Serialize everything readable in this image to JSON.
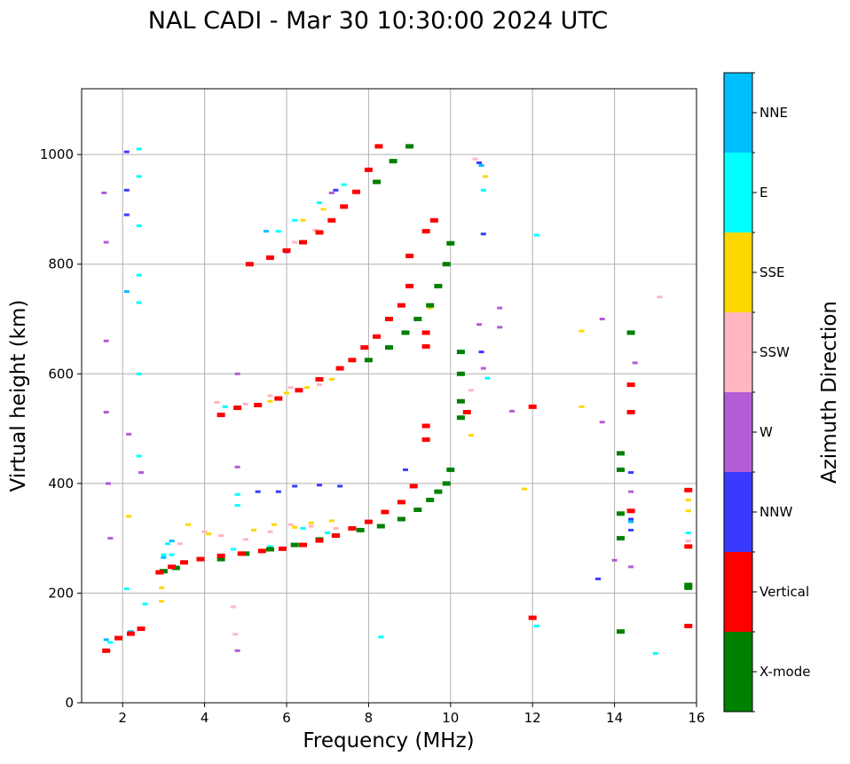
{
  "chart_data": {
    "type": "scatter",
    "title": "NAL CADI - Mar 30 10:30:00 2024 UTC",
    "xlabel": "Frequency (MHz)",
    "ylabel": "Virtual height (km)",
    "xlim": [
      1,
      16
    ],
    "ylim": [
      0,
      1120
    ],
    "xticks": [
      2,
      4,
      6,
      8,
      10,
      12,
      14,
      16
    ],
    "yticks": [
      0,
      200,
      400,
      600,
      800,
      1000
    ],
    "grid": true,
    "colorbar": {
      "label": "Azimuth Direction",
      "placement": "right",
      "categories": [
        "X-mode",
        "Vertical",
        "NNW",
        "W",
        "SSW",
        "SSE",
        "E",
        "NNE"
      ],
      "colors": [
        "#008000",
        "#ff0000",
        "#3a3aff",
        "#b35cd6",
        "#ffb6c1",
        "#ffd700",
        "#00ffff",
        "#00bfff"
      ]
    },
    "series": [
      {
        "name": "Vertical",
        "points": [
          [
            1.6,
            95
          ],
          [
            1.9,
            118
          ],
          [
            2.2,
            126
          ],
          [
            2.45,
            135
          ],
          [
            2.9,
            238
          ],
          [
            3.2,
            248
          ],
          [
            3.5,
            256
          ],
          [
            3.9,
            262
          ],
          [
            4.4,
            268
          ],
          [
            4.9,
            272
          ],
          [
            5.4,
            277
          ],
          [
            5.9,
            281
          ],
          [
            6.4,
            288
          ],
          [
            6.8,
            296
          ],
          [
            7.2,
            305
          ],
          [
            7.6,
            318
          ],
          [
            8.0,
            330
          ],
          [
            8.4,
            348
          ],
          [
            8.8,
            366
          ],
          [
            9.1,
            395
          ],
          [
            9.4,
            480
          ],
          [
            9.4,
            505
          ],
          [
            4.4,
            525
          ],
          [
            4.8,
            538
          ],
          [
            5.3,
            543
          ],
          [
            5.8,
            555
          ],
          [
            6.3,
            570
          ],
          [
            6.8,
            590
          ],
          [
            7.3,
            610
          ],
          [
            7.6,
            625
          ],
          [
            7.9,
            648
          ],
          [
            8.2,
            668
          ],
          [
            8.5,
            700
          ],
          [
            8.8,
            725
          ],
          [
            9.0,
            760
          ],
          [
            9.0,
            815
          ],
          [
            9.4,
            860
          ],
          [
            9.6,
            880
          ],
          [
            5.1,
            800
          ],
          [
            5.6,
            812
          ],
          [
            6.0,
            825
          ],
          [
            6.4,
            840
          ],
          [
            6.8,
            858
          ],
          [
            7.1,
            880
          ],
          [
            7.4,
            905
          ],
          [
            7.7,
            932
          ],
          [
            8.0,
            972
          ],
          [
            8.25,
            1015
          ],
          [
            9.4,
            650
          ],
          [
            9.4,
            675
          ],
          [
            10.4,
            530
          ],
          [
            12.0,
            540
          ],
          [
            12.0,
            155
          ],
          [
            15.8,
            140
          ],
          [
            15.8,
            285
          ],
          [
            15.8,
            388
          ],
          [
            14.4,
            350
          ],
          [
            14.4,
            530
          ],
          [
            14.4,
            580
          ]
        ]
      },
      {
        "name": "X-mode",
        "points": [
          [
            3.0,
            240
          ],
          [
            3.3,
            246
          ],
          [
            4.4,
            262
          ],
          [
            5.0,
            272
          ],
          [
            5.6,
            280
          ],
          [
            6.2,
            288
          ],
          [
            6.8,
            298
          ],
          [
            7.2,
            305
          ],
          [
            7.8,
            315
          ],
          [
            8.3,
            322
          ],
          [
            8.8,
            335
          ],
          [
            9.2,
            352
          ],
          [
            9.5,
            370
          ],
          [
            9.7,
            385
          ],
          [
            9.9,
            400
          ],
          [
            10.0,
            425
          ],
          [
            8.0,
            625
          ],
          [
            8.5,
            648
          ],
          [
            8.9,
            675
          ],
          [
            9.2,
            700
          ],
          [
            9.5,
            725
          ],
          [
            9.7,
            760
          ],
          [
            9.9,
            800
          ],
          [
            10.0,
            838
          ],
          [
            10.25,
            520
          ],
          [
            10.25,
            550
          ],
          [
            10.25,
            600
          ],
          [
            10.25,
            640
          ],
          [
            8.2,
            950
          ],
          [
            8.6,
            988
          ],
          [
            9.0,
            1015
          ],
          [
            14.15,
            130
          ],
          [
            14.15,
            300
          ],
          [
            14.15,
            345
          ],
          [
            14.15,
            455
          ],
          [
            14.15,
            425
          ],
          [
            14.4,
            675
          ],
          [
            15.8,
            210
          ],
          [
            15.8,
            215
          ]
        ]
      },
      {
        "name": "SSE",
        "points": [
          [
            2.15,
            340
          ],
          [
            2.95,
            210
          ],
          [
            2.95,
            185
          ],
          [
            3.6,
            325
          ],
          [
            4.1,
            308
          ],
          [
            5.2,
            315
          ],
          [
            5.7,
            325
          ],
          [
            6.2,
            320
          ],
          [
            6.6,
            328
          ],
          [
            7.1,
            332
          ],
          [
            5.6,
            550
          ],
          [
            6.0,
            565
          ],
          [
            6.5,
            575
          ],
          [
            7.1,
            590
          ],
          [
            6.4,
            880
          ],
          [
            6.9,
            900
          ],
          [
            9.5,
            720
          ],
          [
            10.5,
            488
          ],
          [
            13.2,
            540
          ],
          [
            13.2,
            678
          ],
          [
            15.8,
            350
          ],
          [
            15.8,
            370
          ],
          [
            10.85,
            960
          ],
          [
            11.8,
            390
          ]
        ]
      },
      {
        "name": "SSW",
        "points": [
          [
            3.4,
            290
          ],
          [
            4.0,
            312
          ],
          [
            4.4,
            305
          ],
          [
            5.0,
            298
          ],
          [
            5.6,
            312
          ],
          [
            6.1,
            325
          ],
          [
            6.6,
            322
          ],
          [
            7.2,
            318
          ],
          [
            4.3,
            548
          ],
          [
            5.0,
            545
          ],
          [
            5.6,
            560
          ],
          [
            6.1,
            575
          ],
          [
            6.8,
            580
          ],
          [
            6.2,
            840
          ],
          [
            6.7,
            862
          ],
          [
            4.7,
            175
          ],
          [
            4.75,
            125
          ],
          [
            15.1,
            740
          ],
          [
            15.8,
            295
          ],
          [
            10.5,
            570
          ],
          [
            10.6,
            992
          ]
        ]
      },
      {
        "name": "W",
        "points": [
          [
            1.55,
            930
          ],
          [
            1.6,
            840
          ],
          [
            1.6,
            660
          ],
          [
            1.6,
            530
          ],
          [
            1.65,
            400
          ],
          [
            1.7,
            300
          ],
          [
            2.15,
            490
          ],
          [
            2.45,
            420
          ],
          [
            4.8,
            430
          ],
          [
            4.8,
            600
          ],
          [
            4.8,
            95
          ],
          [
            5.6,
            810
          ],
          [
            6.0,
            822
          ],
          [
            7.1,
            930
          ],
          [
            10.7,
            690
          ],
          [
            10.8,
            610
          ],
          [
            11.2,
            720
          ],
          [
            11.2,
            685
          ],
          [
            11.5,
            532
          ],
          [
            13.7,
            700
          ],
          [
            13.7,
            512
          ],
          [
            14.0,
            260
          ],
          [
            14.4,
            248
          ],
          [
            14.4,
            385
          ],
          [
            14.5,
            620
          ]
        ]
      },
      {
        "name": "NNW",
        "points": [
          [
            2.1,
            1005
          ],
          [
            2.1,
            935
          ],
          [
            2.1,
            890
          ],
          [
            5.3,
            385
          ],
          [
            5.8,
            385
          ],
          [
            6.2,
            395
          ],
          [
            6.8,
            397
          ],
          [
            7.3,
            395
          ],
          [
            10.7,
            985
          ],
          [
            10.75,
            640
          ],
          [
            10.8,
            855
          ],
          [
            13.6,
            226
          ],
          [
            14.4,
            315
          ],
          [
            14.4,
            420
          ],
          [
            14.4,
            335
          ],
          [
            8.9,
            425
          ],
          [
            7.2,
            935
          ]
        ]
      },
      {
        "name": "E",
        "points": [
          [
            2.4,
            1010
          ],
          [
            2.4,
            960
          ],
          [
            2.4,
            870
          ],
          [
            2.4,
            780
          ],
          [
            2.4,
            730
          ],
          [
            2.4,
            600
          ],
          [
            2.4,
            450
          ],
          [
            3.1,
            290
          ],
          [
            3.0,
            270
          ],
          [
            2.55,
            180
          ],
          [
            4.7,
            280
          ],
          [
            5.6,
            285
          ],
          [
            6.4,
            318
          ],
          [
            7.0,
            310
          ],
          [
            4.5,
            540
          ],
          [
            5.8,
            860
          ],
          [
            6.2,
            880
          ],
          [
            6.8,
            912
          ],
          [
            7.4,
            945
          ],
          [
            4.8,
            540
          ],
          [
            4.8,
            360
          ],
          [
            4.8,
            380
          ],
          [
            2.1,
            208
          ],
          [
            1.7,
            110
          ],
          [
            8.3,
            120
          ],
          [
            10.8,
            935
          ],
          [
            10.9,
            592
          ],
          [
            12.1,
            140
          ],
          [
            12.1,
            853
          ],
          [
            15.0,
            90
          ],
          [
            15.8,
            310
          ],
          [
            3.2,
            270
          ]
        ]
      },
      {
        "name": "NNE",
        "points": [
          [
            2.1,
            750
          ],
          [
            3.0,
            265
          ],
          [
            3.2,
            295
          ],
          [
            2.2,
            130
          ],
          [
            1.6,
            115
          ],
          [
            5.5,
            860
          ],
          [
            10.75,
            980
          ],
          [
            14.4,
            330
          ]
        ]
      }
    ]
  }
}
